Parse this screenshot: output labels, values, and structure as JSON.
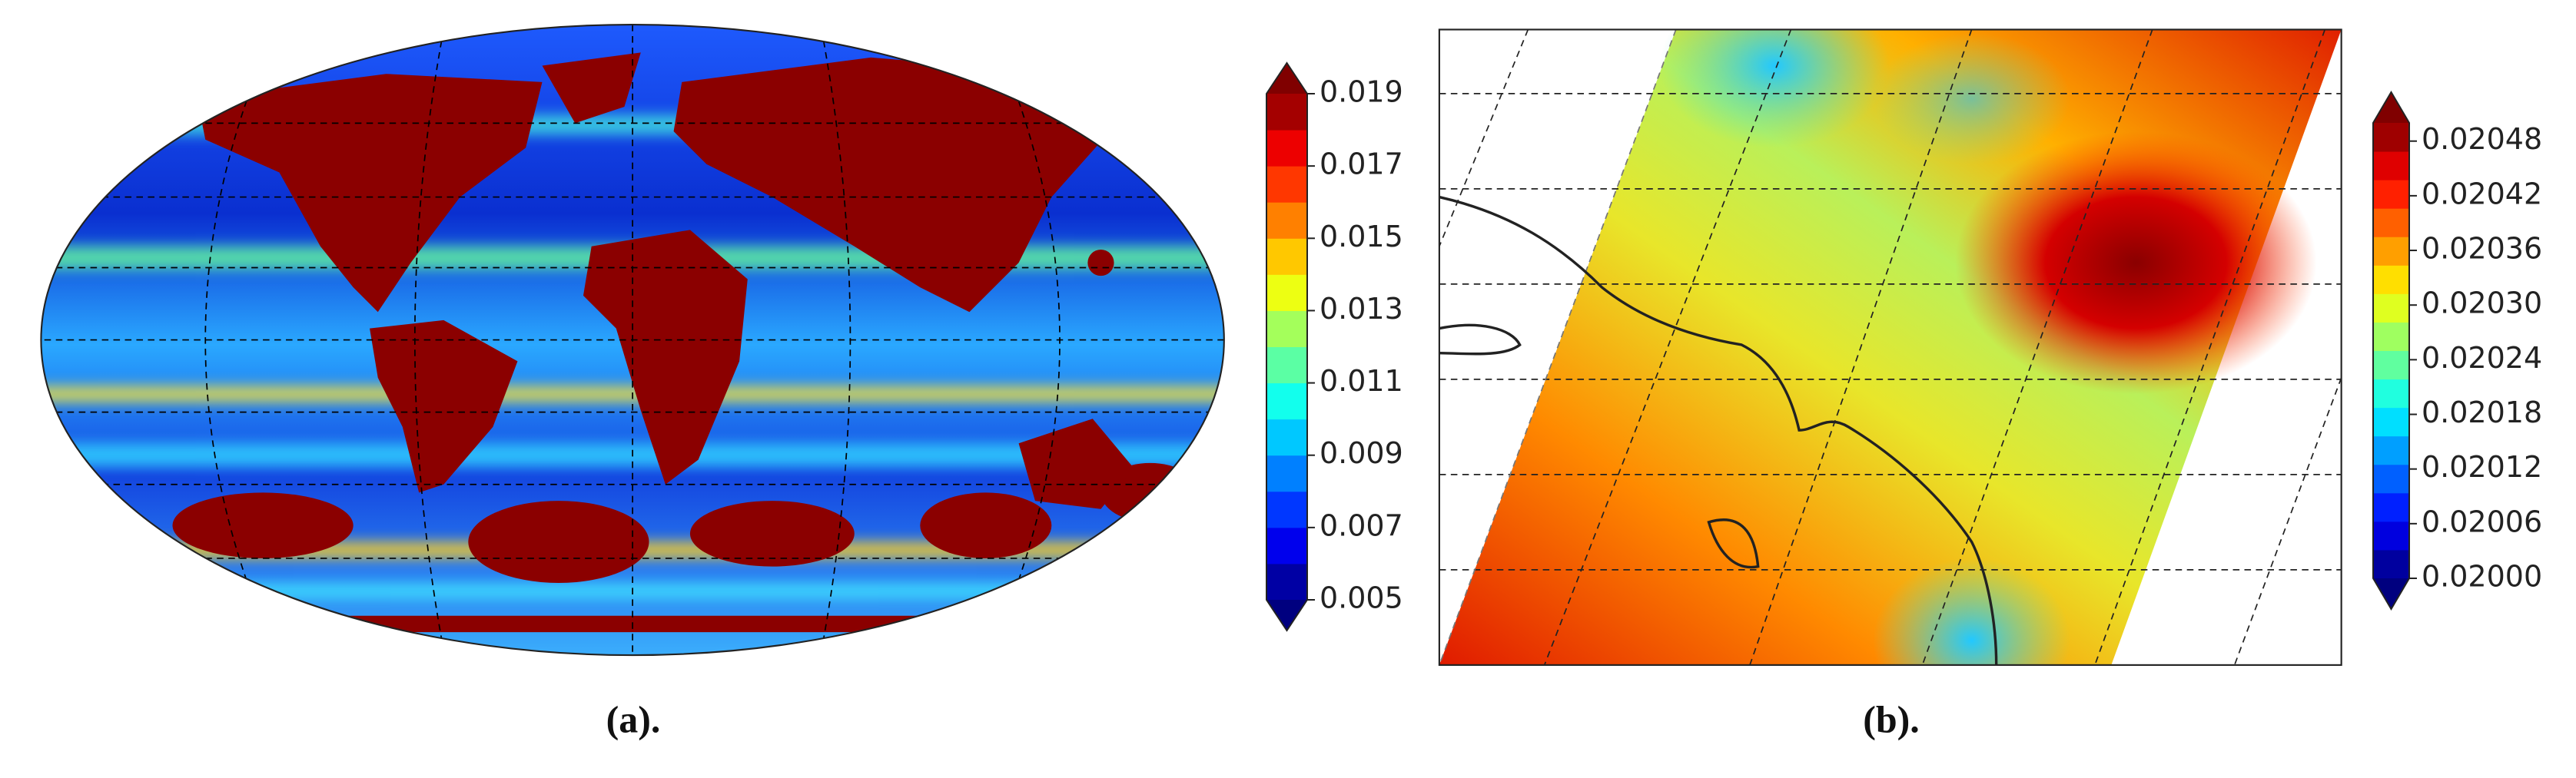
{
  "chart_data": [
    {
      "type": "map",
      "caption": "(a).",
      "colorbar": {
        "lim": [
          0.005,
          0.019
        ],
        "ticks": [
          0.005,
          0.007,
          0.009,
          0.011,
          0.013,
          0.015,
          0.017,
          0.019
        ]
      }
    },
    {
      "type": "map",
      "caption": "(b).",
      "colorbar": {
        "lim": [
          0.02,
          0.0205
        ],
        "ticks": [
          {
            "value": 0.02,
            "label": "0.02000"
          },
          0.02006,
          0.02012,
          0.02018,
          0.02024,
          {
            "value": 0.0203,
            "label": "0.02030"
          },
          0.02036,
          0.02042,
          0.02048
        ]
      }
    }
  ]
}
